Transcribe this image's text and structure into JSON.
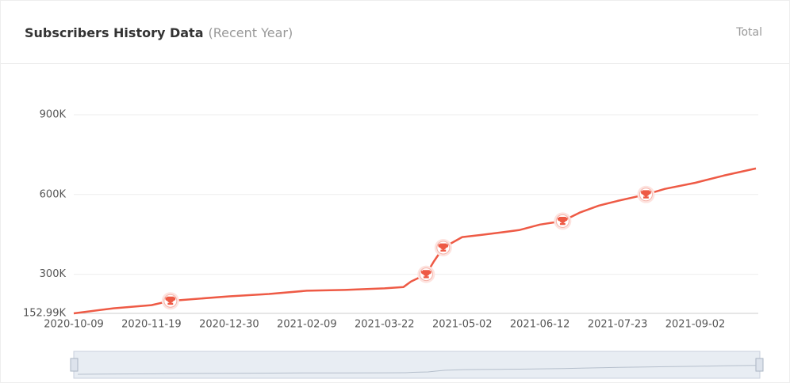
{
  "header": {
    "title": "Subscribers History Data",
    "subtitle": "(Recent Year)",
    "toggle": "Total"
  },
  "chart_data": {
    "type": "line",
    "color": "#ee5a45",
    "x": [
      "2020-10-09",
      "2020-10-30",
      "2020-11-19",
      "2020-11-29",
      "2020-12-30",
      "2021-01-20",
      "2021-02-09",
      "2021-03-01",
      "2021-03-22",
      "2021-04-01",
      "2021-04-05",
      "2021-04-13",
      "2021-04-17",
      "2021-04-22",
      "2021-05-02",
      "2021-05-12",
      "2021-05-22",
      "2021-06-01",
      "2021-06-12",
      "2021-06-24",
      "2021-07-03",
      "2021-07-13",
      "2021-07-23",
      "2021-08-07",
      "2021-08-17",
      "2021-09-02",
      "2021-09-17",
      "2021-10-04"
    ],
    "values": [
      152990,
      172000,
      184000,
      200000,
      217000,
      226000,
      238000,
      241000,
      247000,
      252000,
      273000,
      300000,
      348000,
      400000,
      440000,
      448000,
      457000,
      466000,
      487000,
      500000,
      532000,
      558000,
      576000,
      600000,
      621000,
      644000,
      671000,
      698000
    ],
    "milestones": [
      {
        "x": "2020-11-29",
        "value": 200000
      },
      {
        "x": "2021-04-13",
        "value": 300000
      },
      {
        "x": "2021-04-22",
        "value": 400000
      },
      {
        "x": "2021-06-24",
        "value": 500000
      },
      {
        "x": "2021-08-07",
        "value": 600000
      }
    ],
    "xlim": [
      "2020-10-09",
      "2021-10-04"
    ],
    "xticks": [
      "2020-10-09",
      "2020-11-19",
      "2020-12-30",
      "2021-02-09",
      "2021-03-22",
      "2021-05-02",
      "2021-06-12",
      "2021-07-23",
      "2021-09-02"
    ],
    "ylim": [
      152990,
      900000
    ],
    "yticks": [
      {
        "value": 152990,
        "label": "152.99K"
      },
      {
        "value": 300000,
        "label": "300K"
      },
      {
        "value": 600000,
        "label": "600K"
      },
      {
        "value": 900000,
        "label": "900K"
      }
    ],
    "grid": true
  }
}
